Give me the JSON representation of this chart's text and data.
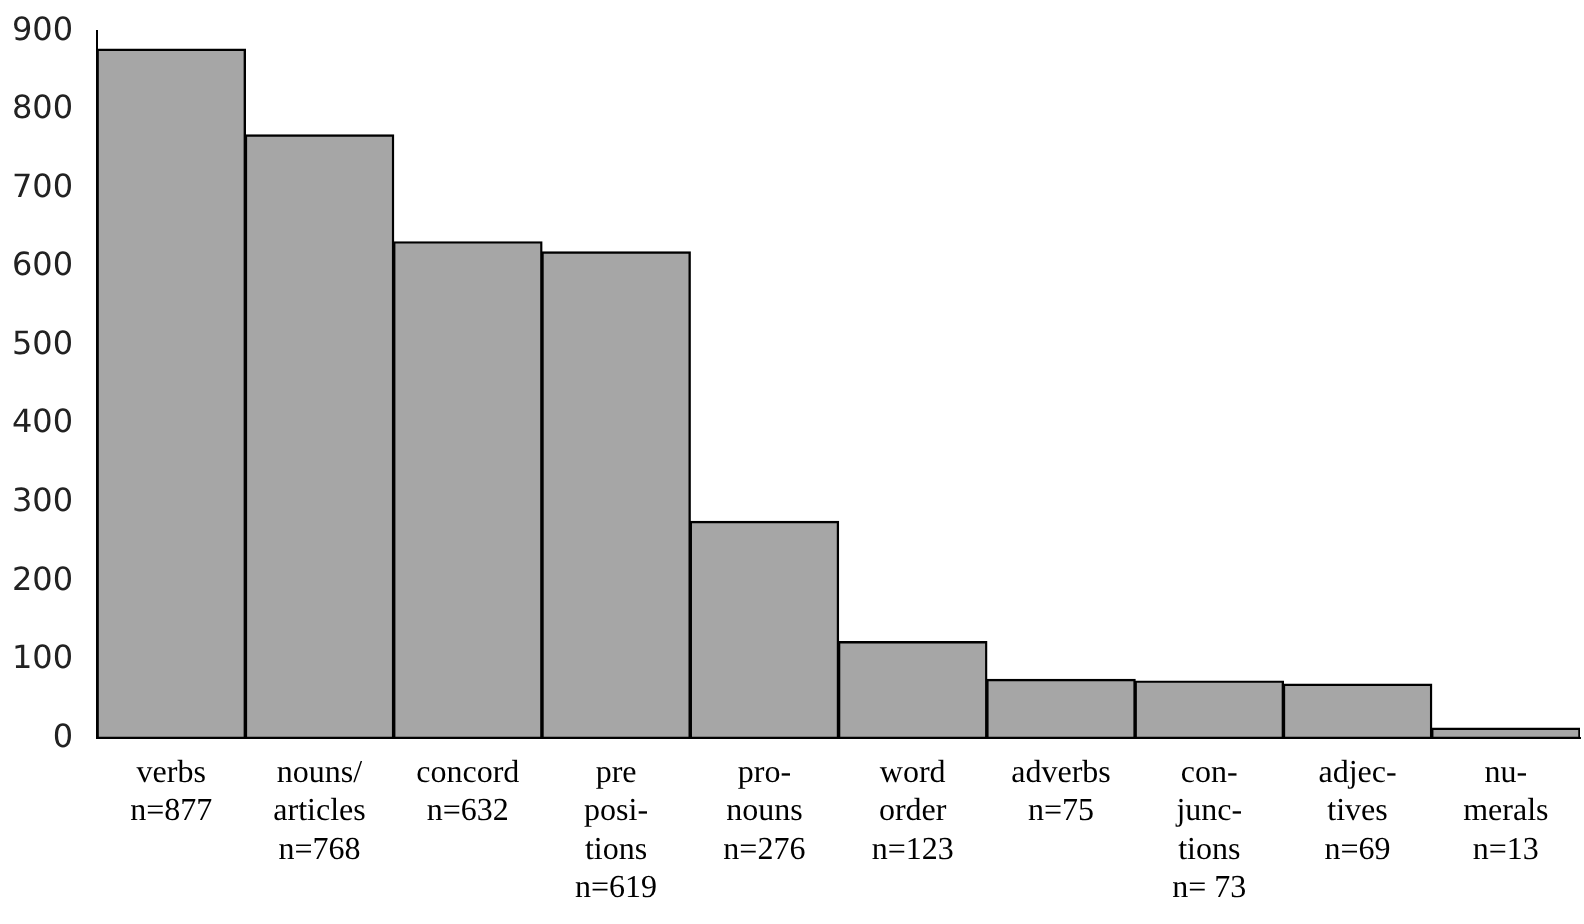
{
  "chart_data": {
    "type": "bar",
    "categories": [
      "verbs\nn=877",
      "nouns/\narticles\nn=768",
      "concord\nn=632",
      "pre\nposi-\ntions\nn=619",
      "pro-\nnouns\nn=276",
      "word\norder\nn=123",
      "adverbs\nn=75",
      "con-\njunc-\ntions\nn= 73",
      "adjec-\ntives\nn=69",
      "nu-\nmerals\nn=13"
    ],
    "values": [
      877,
      768,
      632,
      619,
      276,
      123,
      75,
      73,
      69,
      13
    ],
    "color": "#a6a6a6",
    "ylim": [
      0,
      900
    ],
    "yticks": [
      0,
      100,
      200,
      300,
      400,
      500,
      600,
      700,
      800,
      900
    ],
    "grid": false,
    "legend": false
  }
}
